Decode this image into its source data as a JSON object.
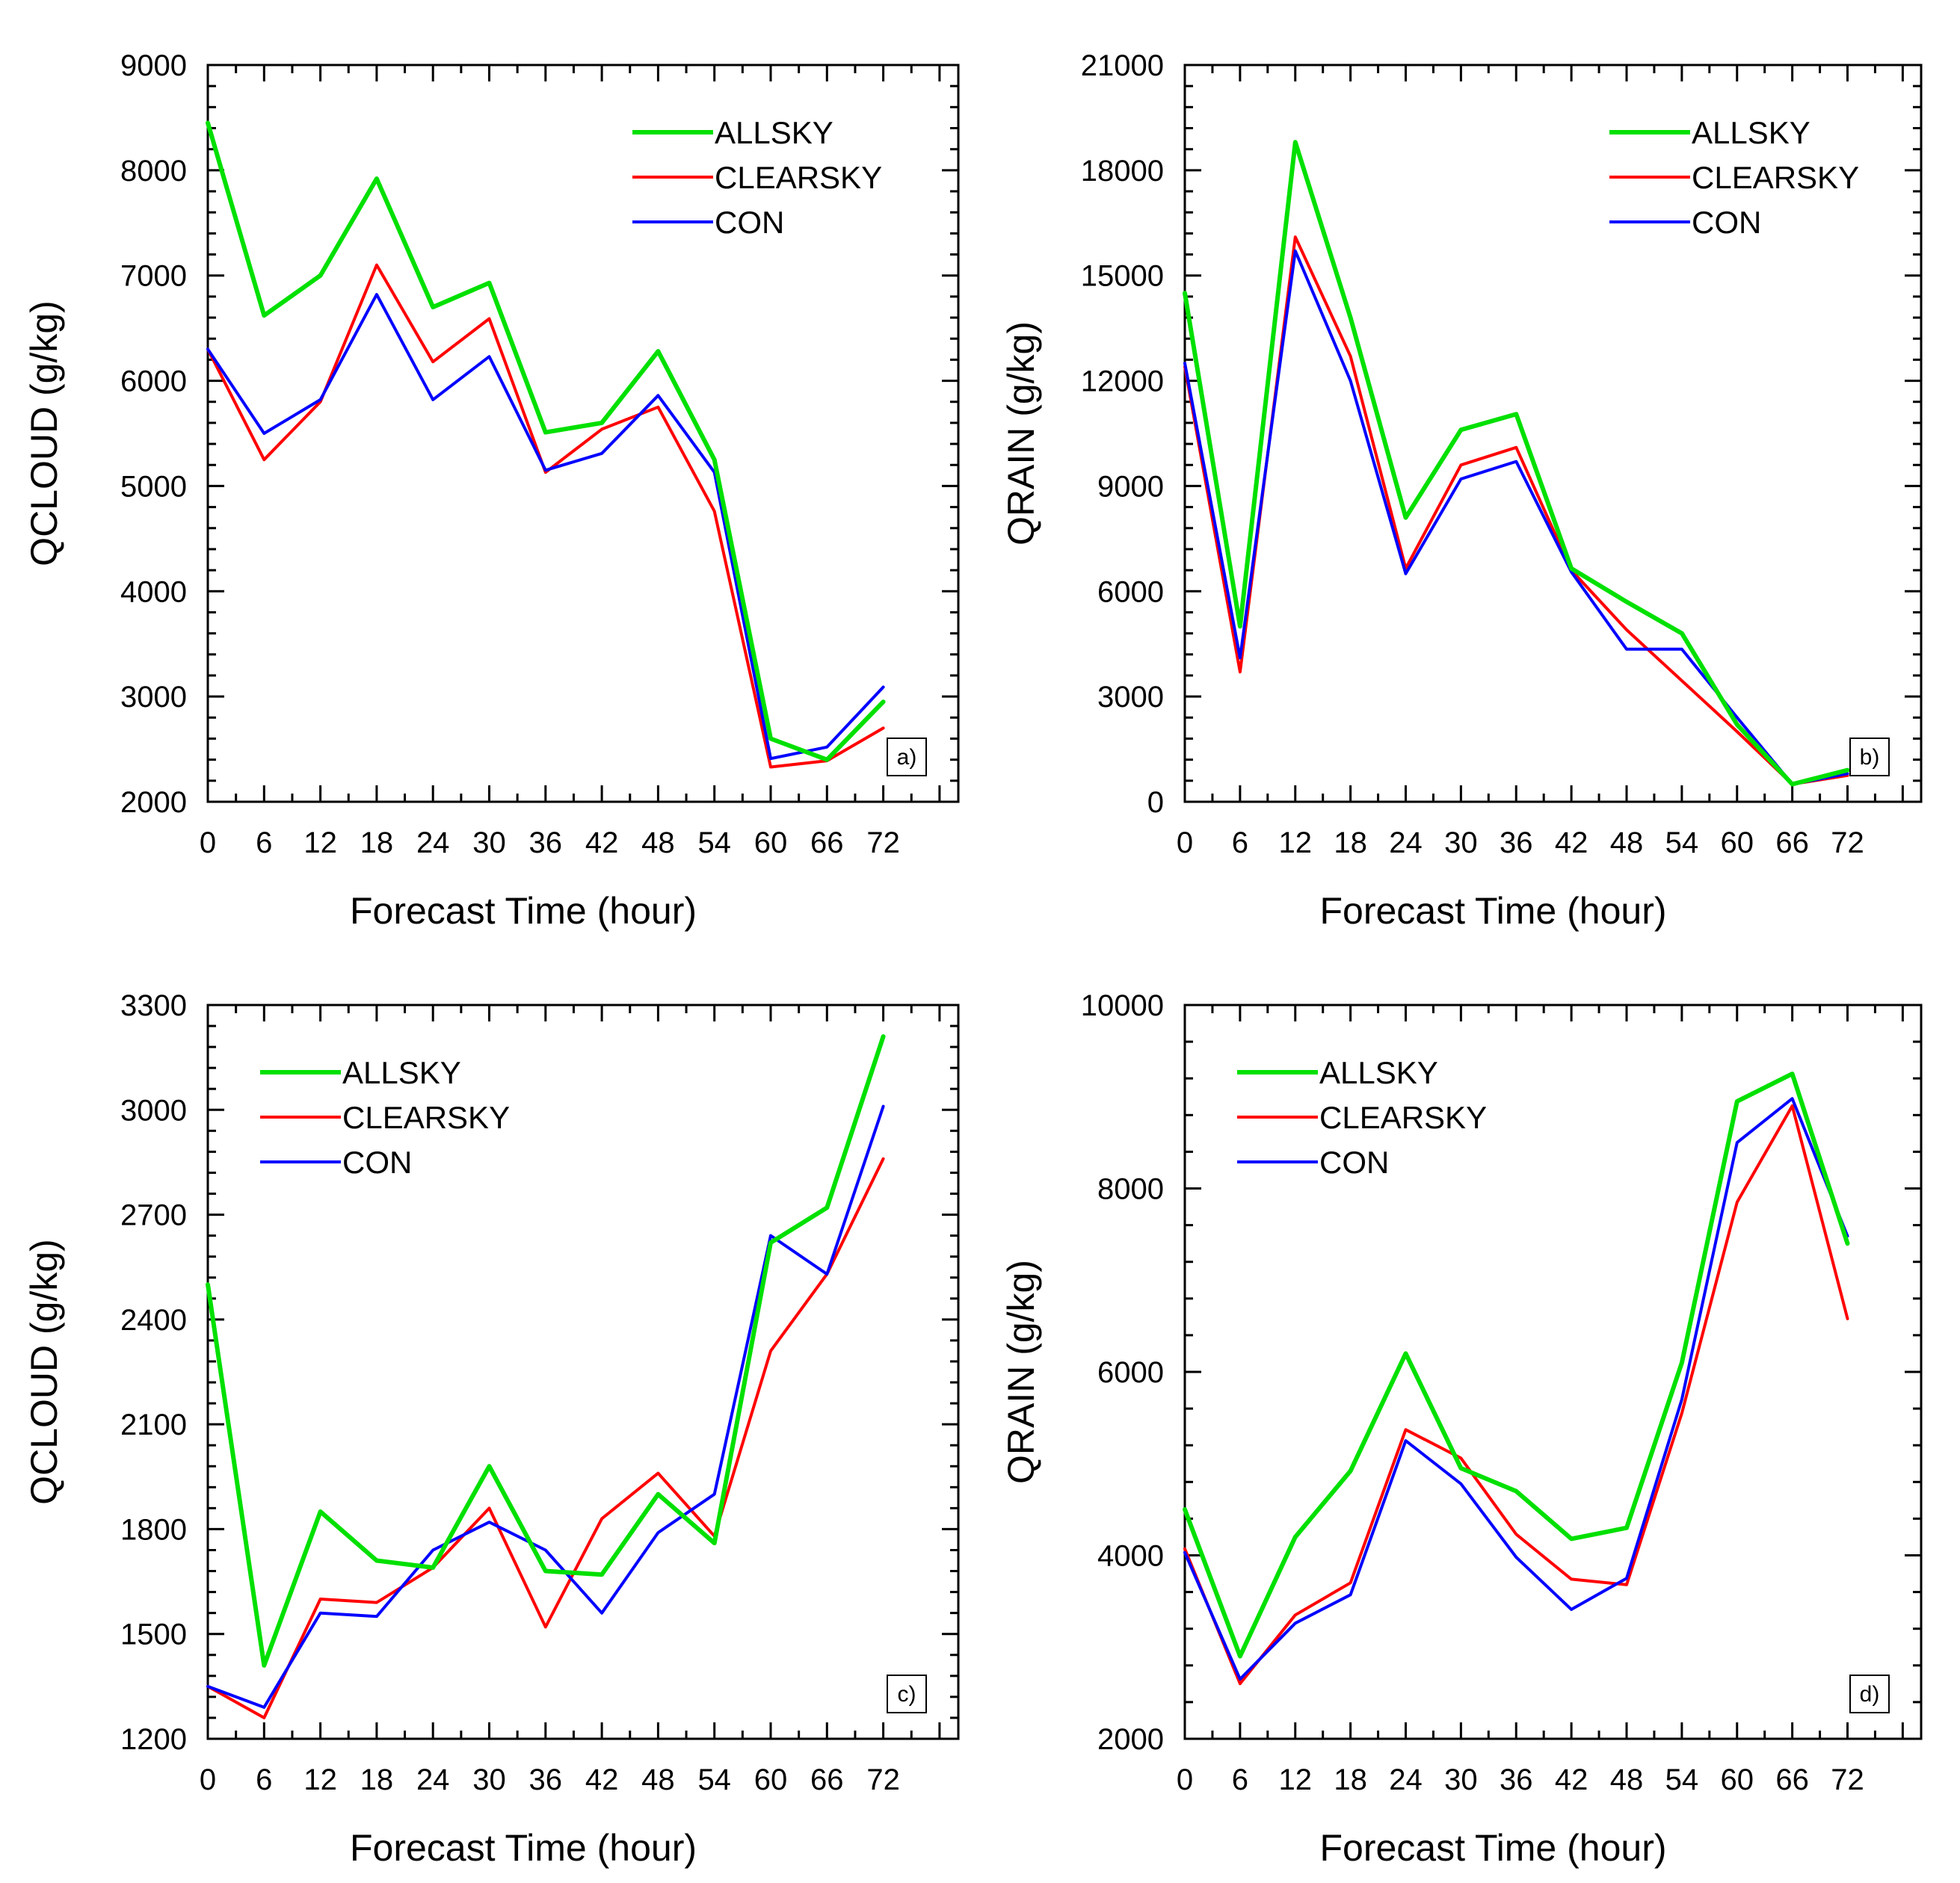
{
  "colors": {
    "ALLSKY": "#00e000",
    "CLEARSKY": "#ff0000",
    "CON": "#0000ff",
    "axis": "#000000"
  },
  "chart_data": [
    {
      "type": "line",
      "panel_label": "a)",
      "xlabel": "Forecast Time (hour)",
      "ylabel": "QCLOUD (g/kg)",
      "x": [
        0,
        6,
        12,
        18,
        24,
        30,
        36,
        42,
        48,
        54,
        60,
        66,
        72
      ],
      "x_ticks": [
        "0",
        "6",
        "12",
        "18",
        "24",
        "30",
        "36",
        "42",
        "48",
        "54",
        "60",
        "66",
        "72"
      ],
      "xlim": [
        0,
        80
      ],
      "ylim": [
        2000,
        9000
      ],
      "y_ticks": [
        "2000",
        "3000",
        "4000",
        "5000",
        "6000",
        "7000",
        "8000",
        "9000"
      ],
      "legend_position": "top-right",
      "series": [
        {
          "name": "ALLSKY",
          "values": [
            8450,
            6620,
            7000,
            7920,
            6700,
            6930,
            5510,
            5600,
            6280,
            5250,
            2600,
            2400,
            2950
          ]
        },
        {
          "name": "CLEARSKY",
          "values": [
            6300,
            5250,
            5800,
            7100,
            6180,
            6590,
            5130,
            5540,
            5750,
            4760,
            2330,
            2390,
            2700
          ]
        },
        {
          "name": "CON",
          "values": [
            6300,
            5500,
            5820,
            6820,
            5820,
            6230,
            5150,
            5310,
            5860,
            5130,
            2410,
            2520,
            3090
          ]
        }
      ]
    },
    {
      "type": "line",
      "panel_label": "b)",
      "xlabel": "Forecast Time (hour)",
      "ylabel": "QRAIN (g/kg)",
      "x": [
        0,
        6,
        12,
        18,
        24,
        30,
        36,
        42,
        48,
        54,
        60,
        66,
        72
      ],
      "x_ticks": [
        "0",
        "6",
        "12",
        "18",
        "24",
        "30",
        "36",
        "42",
        "48",
        "54",
        "60",
        "66",
        "72"
      ],
      "xlim": [
        0,
        80
      ],
      "ylim": [
        0,
        21000
      ],
      "y_ticks": [
        "0",
        "3000",
        "6000",
        "9000",
        "12000",
        "15000",
        "18000",
        "21000"
      ],
      "legend_position": "top-right",
      "series": [
        {
          "name": "ALLSKY",
          "values": [
            14500,
            5000,
            18800,
            13800,
            8100,
            10600,
            11050,
            6650,
            5700,
            4800,
            2200,
            500,
            900
          ]
        },
        {
          "name": "CLEARSKY",
          "values": [
            12400,
            3700,
            16100,
            12700,
            6650,
            9600,
            10100,
            6600,
            4900,
            3450,
            2000,
            500,
            750
          ]
        },
        {
          "name": "CON",
          "values": [
            12500,
            4100,
            15700,
            12000,
            6500,
            9200,
            9700,
            6550,
            4350,
            4350,
            2400,
            500,
            800
          ]
        }
      ]
    },
    {
      "type": "line",
      "panel_label": "c)",
      "xlabel": "Forecast Time (hour)",
      "ylabel": "QCLOUD (g/kg)",
      "x": [
        0,
        6,
        12,
        18,
        24,
        30,
        36,
        42,
        48,
        54,
        60,
        66,
        72
      ],
      "x_ticks": [
        "0",
        "6",
        "12",
        "18",
        "24",
        "30",
        "36",
        "42",
        "48",
        "54",
        "60",
        "66",
        "72"
      ],
      "xlim": [
        0,
        80
      ],
      "ylim": [
        1200,
        3300
      ],
      "y_ticks": [
        "1200",
        "1500",
        "1800",
        "2100",
        "2400",
        "2700",
        "3000",
        "3300"
      ],
      "legend_position": "top-left",
      "series": [
        {
          "name": "ALLSKY",
          "values": [
            2500,
            1410,
            1850,
            1710,
            1690,
            1980,
            1680,
            1670,
            1900,
            1760,
            2620,
            2720,
            3210
          ]
        },
        {
          "name": "CLEARSKY",
          "values": [
            1350,
            1260,
            1600,
            1590,
            1690,
            1860,
            1520,
            1830,
            1960,
            1780,
            2310,
            2530,
            2860
          ]
        },
        {
          "name": "CON",
          "values": [
            1350,
            1290,
            1560,
            1550,
            1740,
            1820,
            1740,
            1560,
            1790,
            1900,
            2640,
            2530,
            3010
          ]
        }
      ]
    },
    {
      "type": "line",
      "panel_label": "d)",
      "xlabel": "Forecast Time (hour)",
      "ylabel": "QRAIN (g/kg)",
      "x": [
        0,
        6,
        12,
        18,
        24,
        30,
        36,
        42,
        48,
        54,
        60,
        66,
        72
      ],
      "x_ticks": [
        "0",
        "6",
        "12",
        "18",
        "24",
        "30",
        "36",
        "42",
        "48",
        "54",
        "60",
        "66",
        "72"
      ],
      "xlim": [
        0,
        80
      ],
      "ylim": [
        2000,
        10000
      ],
      "y_ticks": [
        "2000",
        "4000",
        "6000",
        "8000",
        "10000"
      ],
      "legend_position": "top-left",
      "series": [
        {
          "name": "ALLSKY",
          "values": [
            4500,
            2900,
            4200,
            4920,
            6200,
            4950,
            4700,
            4180,
            4300,
            6100,
            8950,
            9250,
            7400
          ]
        },
        {
          "name": "CLEARSKY",
          "values": [
            4070,
            2600,
            3350,
            3700,
            5370,
            5060,
            4230,
            3740,
            3680,
            5550,
            7850,
            8900,
            6580
          ]
        },
        {
          "name": "CON",
          "values": [
            4030,
            2650,
            3260,
            3570,
            5250,
            4780,
            3980,
            3410,
            3750,
            5700,
            8500,
            8980,
            7480
          ]
        }
      ]
    }
  ]
}
